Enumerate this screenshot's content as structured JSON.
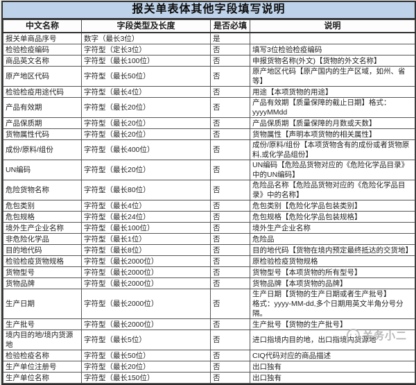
{
  "title": "报关单表体其他字段填写说明",
  "watermark": {
    "text": "关务小二",
    "icon": "smiley-logo-icon",
    "color": "#aaaaaa"
  },
  "colors": {
    "title_bg": "#bed3e9",
    "border": "#2e2e2e",
    "row_bg": "#ffffff",
    "text": "#222222"
  },
  "table": {
    "headers": [
      "中文名称",
      "字段类型及长度",
      "是否必填",
      "说明"
    ],
    "rows": [
      [
        "报关单商品序号",
        "数字（最长3位）",
        "是",
        ""
      ],
      [
        "检验检疫编码",
        "字符型（定长3位）",
        "否",
        "填写3位检验检疫编码"
      ],
      [
        "商品英文名称",
        "字符型（最长100位）",
        "否",
        "申报货物名称(外文)【货物的外文名称】"
      ],
      [
        "原产地区代码",
        "字符型（最长50位）",
        "否",
        "原产地区代码【原产国内的生产区域，如州、省等】"
      ],
      [
        "检验检疫用途代码",
        "字符型（最长4位）",
        "否",
        "用途【本项货物的用途】"
      ],
      [
        "产品有效期",
        "字符型（最长20位）",
        "否",
        "产品有效期【质量保障的截止日期】格式：\nyyyyMMdd"
      ],
      [
        "产品保质期",
        "字符型（最长20位）",
        "否",
        "产品保质期【质量保障的月数或天数】"
      ],
      [
        "货物属性代码",
        "字符型（最长20位）",
        "否",
        "货物属性【声明本项货物的相关属性】"
      ],
      [
        "成份/原料/组份",
        "字符型（最长400位）",
        "否",
        "成份/原料/组份【本项货物含有的成份或者货物原料,或化学品组份】"
      ],
      [
        "UN编码",
        "字符型（最长20位）",
        "否",
        "UN编码【危险品货物对应的《危险化学品目录》中的UN编码】"
      ],
      [
        "危险货物名称",
        "字符型（最长80位）",
        "否",
        "危险品名称【危险品货物对应的《危险化学品目录》中的名称】"
      ],
      [
        "危包类别",
        "字符型（最长4位）",
        "否",
        "危包类别【危险化学品包装类别】"
      ],
      [
        "危包规格",
        "字符型（最长24位）",
        "否",
        "危包规格【危险化学品包装规格】"
      ],
      [
        "境外生产企业名称",
        "字符型（最长100位）",
        "否",
        "境外生产企业名称"
      ],
      [
        "非危险化学品",
        "字符型（最长1位）",
        "否",
        "危险品"
      ],
      [
        "目的地代码",
        "字符型（最长8位）",
        "否",
        "目的地代码【货物在境内预定最终抵达的交货地】"
      ],
      [
        "检验检疫货物规格",
        "字符型（最长2000位）",
        "否",
        "原检验检疫货物规格"
      ],
      [
        "货物型号",
        "字符型（最长2000位）",
        "否",
        "货物型号【本项货物的所有型号】"
      ],
      [
        "货物品牌",
        "字符型（最长2000位）",
        "否",
        "货物品牌【本项货物的品牌】"
      ],
      [
        "生产日期",
        "字符型（最长2000位）",
        "否",
        "生产日期【货物的生产日期或者生产批号】\n格式：yyyy-MM-dd,多个日期用英文半角分号分隔。"
      ],
      [
        "生产批号",
        "字符型（最长2000位）",
        "否",
        "生产批号【货物的生产批号】"
      ],
      [
        "境内目的地/境内货源地",
        "字符型（最长5位）",
        "否",
        "进口指境内目的地，出口指境内货源地"
      ],
      [
        "检验检疫名称",
        "字符型（最长50位）",
        "否",
        "CIQ代码对应的商品描述"
      ],
      [
        "生产单位注册号",
        "字符型（最长20位）",
        "否",
        "出口独有"
      ],
      [
        "生产单位名称",
        "字符型（最长150位）",
        "否",
        "出口独有"
      ]
    ]
  }
}
